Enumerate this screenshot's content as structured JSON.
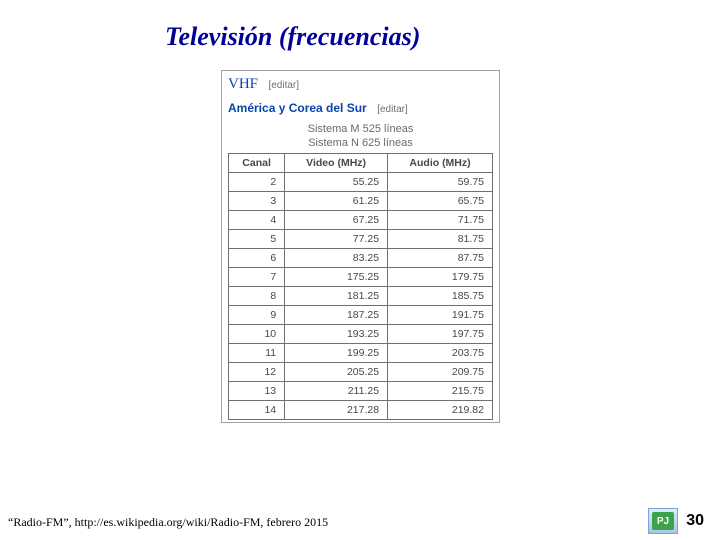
{
  "title": "Televisión (frecuencias)",
  "vhf_label": "VHF",
  "edit_label": "[editar]",
  "region_label": "América y Corea del Sur",
  "system1": "Sistema M 525 líneas",
  "system2": "Sistema N 625 líneas",
  "table": {
    "type": "table",
    "columns": [
      "Canal",
      "Video (MHz)",
      "Audio (MHz)"
    ],
    "column_align": [
      "right",
      "right",
      "right"
    ],
    "header_fontsize": 10.5,
    "cell_fontsize": 10.5,
    "border_color": "#707070",
    "text_color": "#484848",
    "rows": [
      [
        "2",
        "55.25",
        "59.75"
      ],
      [
        "3",
        "61.25",
        "65.75"
      ],
      [
        "4",
        "67.25",
        "71.75"
      ],
      [
        "5",
        "77.25",
        "81.75"
      ],
      [
        "6",
        "83.25",
        "87.75"
      ],
      [
        "7",
        "175.25",
        "179.75"
      ],
      [
        "8",
        "181.25",
        "185.75"
      ],
      [
        "9",
        "187.25",
        "191.75"
      ],
      [
        "10",
        "193.25",
        "197.75"
      ],
      [
        "11",
        "199.25",
        "203.75"
      ],
      [
        "12",
        "205.25",
        "209.75"
      ],
      [
        "13",
        "211.25",
        "215.75"
      ],
      [
        "14",
        "217.28",
        "219.82"
      ]
    ]
  },
  "citation": "“Radio-FM”, http://es.wikipedia.org/wiki/Radio-FM, febrero 2015",
  "logo_text": "PJ",
  "page_number": "30",
  "colors": {
    "title_color": "#000099",
    "link_color": "#0645ad",
    "muted_text": "#6a6a6a",
    "border": "#707070",
    "logo_border": "#7aa3d1",
    "logo_inner": "#3ea24a"
  }
}
